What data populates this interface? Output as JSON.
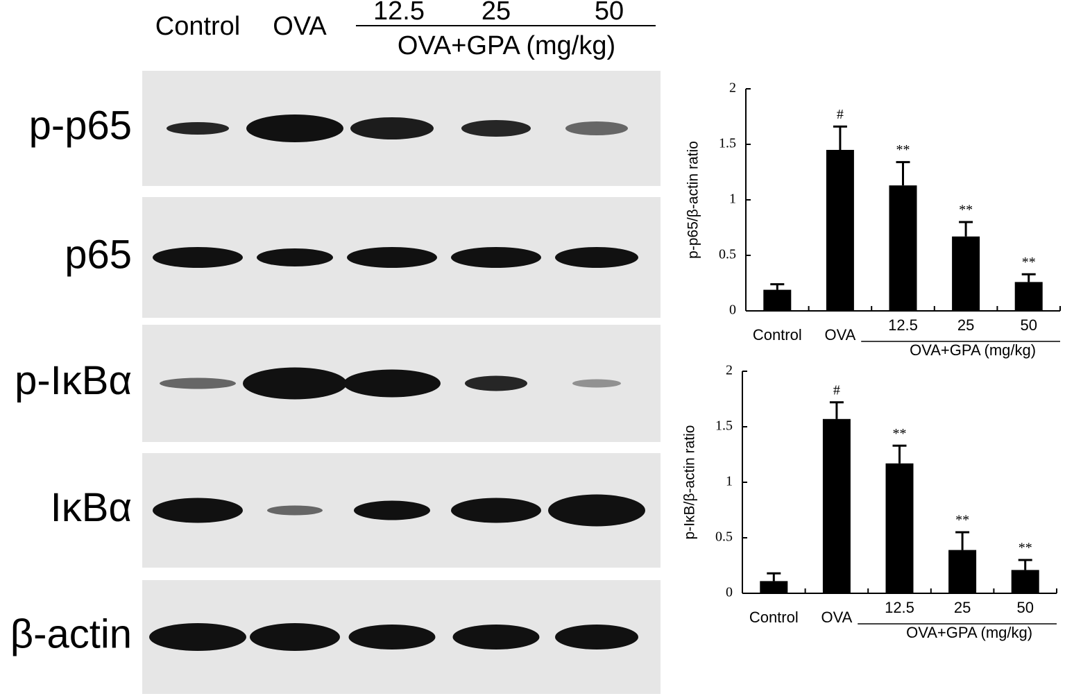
{
  "blot": {
    "lane_labels": [
      "Control",
      "OVA",
      "12.5",
      "25",
      "50"
    ],
    "group_label": "OVA+GPA (mg/kg)",
    "rows": [
      "p-p65",
      "p65",
      "p-IκBα",
      "IκBα",
      "β-actin"
    ]
  },
  "chart_data": [
    {
      "type": "bar",
      "y_label": "p-p65/β-actin ratio",
      "categories": [
        "Control",
        "OVA",
        "12.5",
        "25",
        "50"
      ],
      "group_label": "OVA+GPA (mg/kg)",
      "values": [
        0.19,
        1.45,
        1.13,
        0.67,
        0.26
      ],
      "errors": [
        0.05,
        0.21,
        0.21,
        0.13,
        0.07
      ],
      "annotations": [
        null,
        "#",
        "**",
        "**",
        "**"
      ],
      "color": "#000000",
      "ylim": [
        0,
        2
      ],
      "yticks": [
        0,
        0.5,
        1,
        1.5,
        2
      ]
    },
    {
      "type": "bar",
      "y_label": "p-IκB/β-actin ratio",
      "categories": [
        "Control",
        "OVA",
        "12.5",
        "25",
        "50"
      ],
      "group_label": "OVA+GPA (mg/kg)",
      "values": [
        0.11,
        1.57,
        1.17,
        0.39,
        0.21
      ],
      "errors": [
        0.07,
        0.15,
        0.16,
        0.16,
        0.09
      ],
      "annotations": [
        null,
        "#",
        "**",
        "**",
        "**"
      ],
      "color": "#000000",
      "ylim": [
        0,
        2
      ],
      "yticks": [
        0,
        0.5,
        1,
        1.5,
        2
      ]
    }
  ]
}
